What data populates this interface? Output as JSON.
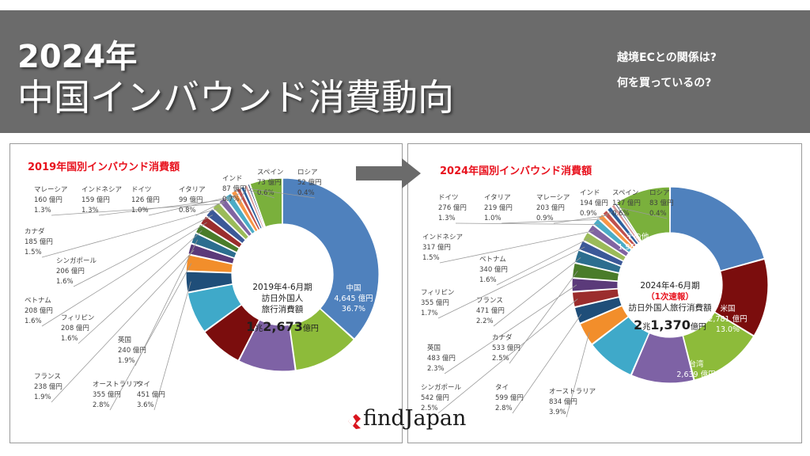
{
  "header": {
    "title_line1": "2024年",
    "title_line2": "中国インバウンド消費動向",
    "subtitle_1": "越境ECとの関係は?",
    "subtitle_2": "何を買っているの?"
  },
  "logo": {
    "text": "findJapan"
  },
  "colors": {
    "header_bg": "#6b6b6b",
    "chart_title_red": "#e8111d",
    "china": "#4f81bd",
    "usa": "#7b0d0d",
    "taiwan": "#8dbb3a",
    "korea": "#7e62a5",
    "hongkong": "#3fa9c9",
    "other": "#7ab03c"
  },
  "chart_data": [
    {
      "type": "pie",
      "variant": "donut",
      "title": "2019年国別インバウンド消費額",
      "center_text": [
        "2019年4-6月期",
        "訪日外国人",
        "旅行消費額"
      ],
      "center_total": {
        "a": "1",
        "unit_a": "兆",
        "b": "2,673",
        "unit_b": "億円"
      },
      "slices": [
        {
          "name": "中国",
          "value": 4645,
          "value_label": "4,645 億円",
          "pct": "36.7%",
          "color": "#4f81bd"
        },
        {
          "name": "台湾",
          "value": 1414,
          "value_label": "1,414 億円",
          "pct": "11.2%",
          "color": "#8dbb3a"
        },
        {
          "name": "韓国",
          "value": 1229,
          "value_label": "1,229 億円",
          "pct": "9.7%",
          "color": "#7e62a5"
        },
        {
          "name": "米国",
          "value": 944,
          "value_label": "944 億円",
          "pct": "7.4%",
          "color": "#7b0d0d"
        },
        {
          "name": "香港",
          "value": 897,
          "value_label": "897 億円",
          "pct": "7.1%",
          "color": "#3fa9c9"
        },
        {
          "name": "タイ",
          "value": 451,
          "value_label": "451 億円",
          "pct": "3.6%",
          "color": "#1f4e79"
        },
        {
          "name": "オーストラリア",
          "value": 355,
          "value_label": "355 億円",
          "pct": "2.8%",
          "color": "#f28e2b"
        },
        {
          "name": "フランス",
          "value": 238,
          "value_label": "238 億円",
          "pct": "1.9%",
          "color": "#5b3a7a"
        },
        {
          "name": "英国",
          "value": 240,
          "value_label": "240 億円",
          "pct": "1.9%",
          "color": "#2c6e8f"
        },
        {
          "name": "フィリピン",
          "value": 208,
          "value_label": "208 億円",
          "pct": "1.6%",
          "color": "#4a7c2a"
        },
        {
          "name": "ベトナム",
          "value": 208,
          "value_label": "208 億円",
          "pct": "1.6%",
          "color": "#9b2d2d"
        },
        {
          "name": "シンガポール",
          "value": 206,
          "value_label": "206 億円",
          "pct": "1.6%",
          "color": "#3b5998"
        },
        {
          "name": "カナダ",
          "value": 185,
          "value_label": "185 億円",
          "pct": "1.5%",
          "color": "#9bbb59"
        },
        {
          "name": "マレーシア",
          "value": 160,
          "value_label": "160 億円",
          "pct": "1.3%",
          "color": "#8064a2"
        },
        {
          "name": "インドネシア",
          "value": 159,
          "value_label": "159 億円",
          "pct": "1.3%",
          "color": "#4bacc6"
        },
        {
          "name": "ドイツ",
          "value": 126,
          "value_label": "126 億円",
          "pct": "1.0%",
          "color": "#f79646"
        },
        {
          "name": "イタリア",
          "value": 99,
          "value_label": "99 億円",
          "pct": "0.8%",
          "color": "#c0504d"
        },
        {
          "name": "インド",
          "value": 87,
          "value_label": "87 億円",
          "pct": "0.7%",
          "color": "#2a5f9e"
        },
        {
          "name": "スペイン",
          "value": 73,
          "value_label": "73 億円",
          "pct": "0.6%",
          "color": "#d99594"
        },
        {
          "name": "ロシア",
          "value": 52,
          "value_label": "52 億円",
          "pct": "0.4%",
          "color": "#17375e"
        },
        {
          "name": "その他",
          "value": 698,
          "value_label": "698 億円",
          "pct": "5.5%",
          "color": "#7ab03c"
        }
      ]
    },
    {
      "type": "pie",
      "variant": "donut",
      "title": "2024年国別インバウンド消費額",
      "center_text": [
        "2024年4-6月期",
        "（1次速報）",
        "訪日外国人旅行消費額"
      ],
      "center_total": {
        "a": "2",
        "unit_a": "兆",
        "b": "1,370",
        "unit_b": "億円"
      },
      "slices": [
        {
          "name": "中国",
          "value": 4420,
          "value_label": "4,420 億円",
          "pct": "20.7%",
          "color": "#4f81bd"
        },
        {
          "name": "米国",
          "value": 2781,
          "value_label": "2,781 億円",
          "pct": "13.0%",
          "color": "#7b0d0d"
        },
        {
          "name": "台湾",
          "value": 2639,
          "value_label": "2,639 億円",
          "pct": "12.4%",
          "color": "#8dbb3a"
        },
        {
          "name": "韓国",
          "value": 2232,
          "value_label": "2,232 億円",
          "pct": "10.4%",
          "color": "#7e62a5"
        },
        {
          "name": "香港",
          "value": 1743,
          "value_label": "1,743 億円",
          "pct": "8.2%",
          "color": "#3fa9c9"
        },
        {
          "name": "オーストラリア",
          "value": 834,
          "value_label": "834 億円",
          "pct": "3.9%",
          "color": "#f28e2b"
        },
        {
          "name": "タイ",
          "value": 599,
          "value_label": "599 億円",
          "pct": "2.8%",
          "color": "#1f4e79"
        },
        {
          "name": "シンガポール",
          "value": 542,
          "value_label": "542 億円",
          "pct": "2.5%",
          "color": "#9b2d2d"
        },
        {
          "name": "英国",
          "value": 483,
          "value_label": "483 億円",
          "pct": "2.3%",
          "color": "#5b3a7a"
        },
        {
          "name": "カナダ",
          "value": 533,
          "value_label": "533 億円",
          "pct": "2.5%",
          "color": "#4a7c2a"
        },
        {
          "name": "フランス",
          "value": 471,
          "value_label": "471 億円",
          "pct": "2.2%",
          "color": "#2c6e8f"
        },
        {
          "name": "フィリピン",
          "value": 355,
          "value_label": "355 億円",
          "pct": "1.7%",
          "color": "#3b5998"
        },
        {
          "name": "ベトナム",
          "value": 340,
          "value_label": "340 億円",
          "pct": "1.6%",
          "color": "#9bbb59"
        },
        {
          "name": "インドネシア",
          "value": 317,
          "value_label": "317 億円",
          "pct": "1.5%",
          "color": "#8064a2"
        },
        {
          "name": "ドイツ",
          "value": 276,
          "value_label": "276 億円",
          "pct": "1.3%",
          "color": "#4bacc6"
        },
        {
          "name": "イタリア",
          "value": 219,
          "value_label": "219 億円",
          "pct": "1.0%",
          "color": "#f79646"
        },
        {
          "name": "マレーシア",
          "value": 203,
          "value_label": "203 億円",
          "pct": "0.9%",
          "color": "#c0504d"
        },
        {
          "name": "インド",
          "value": 194,
          "value_label": "194 億円",
          "pct": "0.9%",
          "color": "#2a5f9e"
        },
        {
          "name": "スペイン",
          "value": 137,
          "value_label": "137 億円",
          "pct": "0.6%",
          "color": "#d99594"
        },
        {
          "name": "ロシア",
          "value": 83,
          "value_label": "83 億円",
          "pct": "0.4%",
          "color": "#17375e"
        },
        {
          "name": "その他",
          "value": 1969,
          "value_label": "1,969 億円",
          "pct": "9.2%",
          "color": "#7ab03c"
        }
      ]
    }
  ]
}
